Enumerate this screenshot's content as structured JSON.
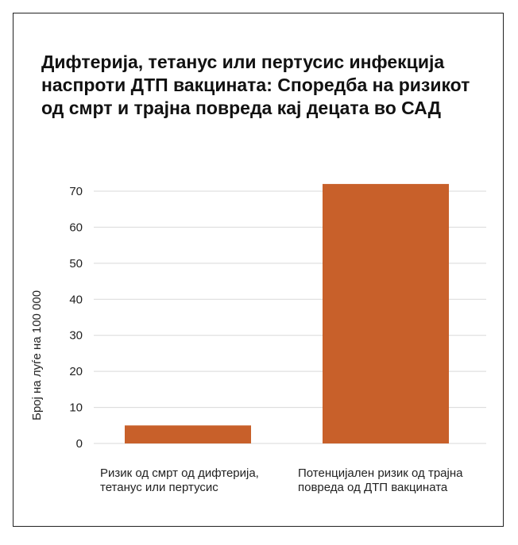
{
  "chart_data": {
    "type": "bar",
    "title": "Дифтерија, тетанус или пертусис инфекција наспроти ДТП вакцината: Споредба на ризикот од смрт и трајна повреда кај децата во САД",
    "ylabel": "Број на луѓе на 100 000",
    "xlabel": "",
    "categories": [
      "Ризик од смрт од дифтерија, тетанус или пертусис",
      "Потенцијален ризик од трајна повреда од ДТП вакцината"
    ],
    "values": [
      5,
      72
    ],
    "ylim": [
      0,
      70
    ],
    "yticks": [
      0,
      10,
      20,
      30,
      40,
      50,
      60,
      70
    ],
    "bar_color": "#c8602a",
    "grid_color": "#d9d9d9",
    "grid": true
  }
}
